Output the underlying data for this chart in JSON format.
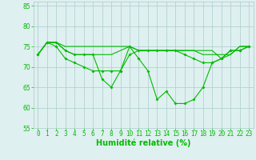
{
  "xlabel": "Humidité relative (%)",
  "x": [
    0,
    1,
    2,
    3,
    4,
    5,
    6,
    7,
    8,
    9,
    10,
    11,
    12,
    13,
    14,
    15,
    16,
    17,
    18,
    19,
    20,
    21,
    22,
    23
  ],
  "line1": [
    73,
    76,
    76,
    74,
    73,
    73,
    73,
    67,
    65,
    69,
    75,
    72,
    69,
    62,
    64,
    61,
    61,
    62,
    65,
    71,
    72,
    74,
    74,
    75
  ],
  "line2": [
    73,
    76,
    76,
    74,
    73,
    73,
    73,
    73,
    73,
    74,
    75,
    74,
    74,
    74,
    74,
    74,
    74,
    74,
    73,
    73,
    73,
    73,
    75,
    75
  ],
  "line3": [
    73,
    76,
    75,
    72,
    71,
    70,
    69,
    69,
    69,
    69,
    73,
    74,
    74,
    74,
    74,
    74,
    73,
    72,
    71,
    71,
    72,
    74,
    74,
    75
  ],
  "line4": [
    73,
    76,
    76,
    75,
    75,
    75,
    75,
    75,
    75,
    75,
    75,
    74,
    74,
    74,
    74,
    74,
    74,
    74,
    74,
    74,
    72,
    73,
    75,
    75
  ],
  "ylim": [
    55,
    86
  ],
  "yticks": [
    55,
    60,
    65,
    70,
    75,
    80,
    85
  ],
  "bg_color": "#dff0f0",
  "grid_color": "#aacccc",
  "line_color": "#00bb00",
  "marker": "D",
  "markersize": 2.0,
  "linewidth": 0.8,
  "xlabel_fontsize": 7,
  "tick_fontsize": 5.5
}
